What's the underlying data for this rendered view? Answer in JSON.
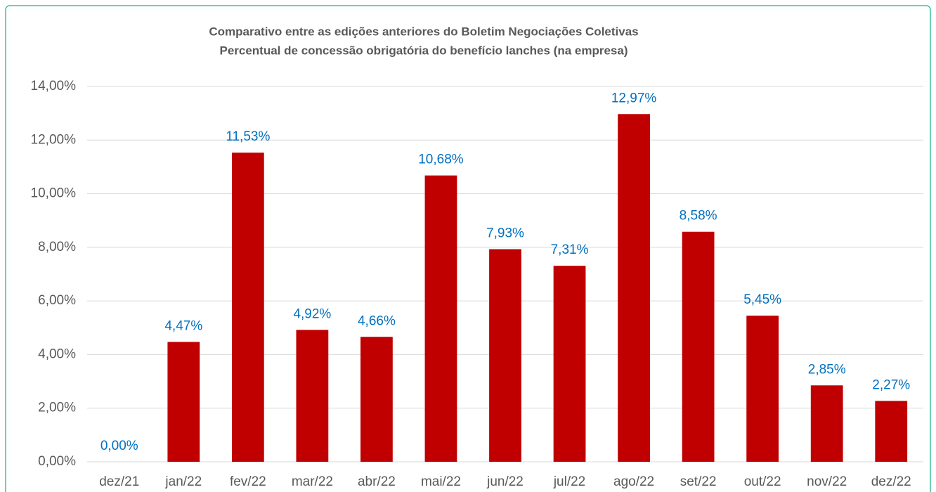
{
  "chart_data": {
    "type": "bar",
    "title": "Comparativo entre as edições anteriores do Boletim Negociações Coletivas",
    "subtitle": "Percentual de concessão obrigatória do benefício lanches (na empresa)",
    "categories": [
      "dez/21",
      "jan/22",
      "fev/22",
      "mar/22",
      "abr/22",
      "mai/22",
      "jun/22",
      "jul/22",
      "ago/22",
      "set/22",
      "out/22",
      "nov/22",
      "dez/22"
    ],
    "values": [
      0,
      4.47,
      11.53,
      4.92,
      4.66,
      10.68,
      7.93,
      7.31,
      12.97,
      8.58,
      5.45,
      2.85,
      2.27
    ],
    "value_labels": [
      "0,00%",
      "4,47%",
      "11,53%",
      "4,92%",
      "4,66%",
      "10,68%",
      "7,93%",
      "7,31%",
      "12,97%",
      "8,58%",
      "5,45%",
      "2,85%",
      "2,27%"
    ],
    "color": "#c00000",
    "label_color": "#0070c0",
    "ylim": [
      0,
      14
    ],
    "yticks": [
      {
        "value": 0,
        "label": "0,00%"
      },
      {
        "value": 2,
        "label": "2,00%"
      },
      {
        "value": 4,
        "label": "4,00%"
      },
      {
        "value": 6,
        "label": "6,00%"
      },
      {
        "value": 8,
        "label": "8,00%"
      },
      {
        "value": 10,
        "label": "10,00%"
      },
      {
        "value": 12,
        "label": "12,00%"
      },
      {
        "value": 14,
        "label": "14,00%"
      }
    ],
    "grid": true
  }
}
